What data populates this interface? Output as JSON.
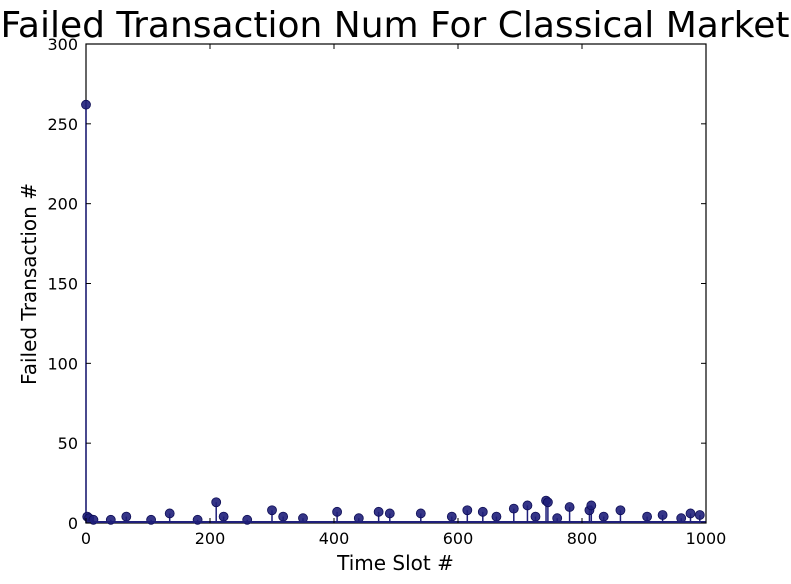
{
  "chart_data": {
    "type": "scatter",
    "title": "Failed Transaction Num For Classical Market",
    "xlabel": "Time Slot #",
    "ylabel": "Failed Transaction #",
    "xlim": [
      0,
      1000
    ],
    "ylim": [
      0,
      300
    ],
    "xticks": [
      "0",
      "200",
      "400",
      "600",
      "800",
      "1000"
    ],
    "yticks": [
      "0",
      "50",
      "100",
      "150",
      "200",
      "250",
      "300"
    ],
    "grid": false,
    "stem": true,
    "marker_color": "#1f1f7a",
    "series": [
      {
        "name": "",
        "x": [
          0,
          2,
          5,
          12,
          40,
          65,
          105,
          135,
          180,
          210,
          222,
          260,
          300,
          318,
          350,
          405,
          440,
          472,
          490,
          540,
          590,
          615,
          640,
          662,
          690,
          712,
          725,
          742,
          745,
          760,
          780,
          812,
          815,
          835,
          862,
          905,
          930,
          960,
          975,
          990
        ],
        "y": [
          262,
          4,
          3,
          2,
          2,
          4,
          2,
          6,
          2,
          13,
          4,
          2,
          8,
          4,
          3,
          7,
          3,
          7,
          6,
          6,
          4,
          8,
          7,
          4,
          9,
          11,
          4,
          14,
          13,
          3,
          10,
          8,
          11,
          4,
          8,
          4,
          5,
          3,
          6,
          5
        ]
      }
    ]
  }
}
